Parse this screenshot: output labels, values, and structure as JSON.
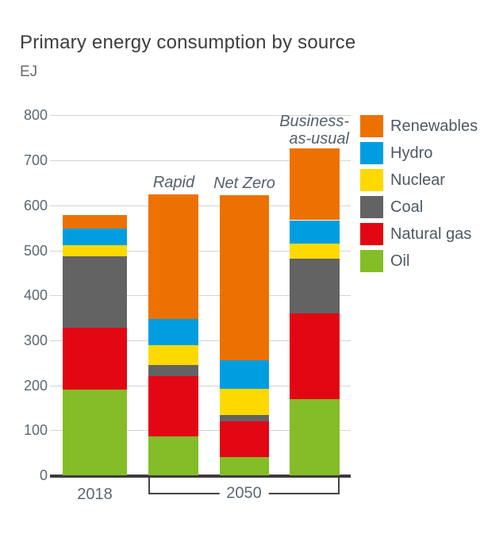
{
  "chart_data": {
    "type": "bar",
    "stacked": true,
    "title": "Primary energy consumption by source",
    "unit": "EJ",
    "ylim": [
      0,
      800
    ],
    "ytick_step": 100,
    "grid": "horizontal",
    "legend_position": "top-right",
    "stack_order_bottom_to_top": [
      "Oil",
      "Natural gas",
      "Coal",
      "Nuclear",
      "Hydro",
      "Renewables"
    ],
    "legend_order_top_to_bottom": [
      "Renewables",
      "Hydro",
      "Nuclear",
      "Coal",
      "Natural gas",
      "Oil"
    ],
    "colors": {
      "Renewables": "#ed7100",
      "Hydro": "#009ee0",
      "Nuclear": "#fed900",
      "Coal": "#636363",
      "Natural gas": "#e30613",
      "Oil": "#84bd27"
    },
    "categories": [
      "2018",
      "Rapid",
      "Net Zero",
      "Business-as-usual"
    ],
    "bars": [
      {
        "id": "2018",
        "scenario_label": null,
        "values": {
          "Oil": 190,
          "Natural gas": 138,
          "Coal": 158,
          "Nuclear": 25,
          "Hydro": 37,
          "Renewables": 30
        },
        "total": 578
      },
      {
        "id": "rapid",
        "scenario_label": "Rapid",
        "values": {
          "Oil": 87,
          "Natural gas": 133,
          "Coal": 25,
          "Nuclear": 45,
          "Hydro": 58,
          "Renewables": 276
        },
        "total": 624
      },
      {
        "id": "net-zero",
        "scenario_label": "Net Zero",
        "values": {
          "Oil": 40,
          "Natural gas": 80,
          "Coal": 14,
          "Nuclear": 58,
          "Hydro": 63,
          "Renewables": 368
        },
        "total": 623
      },
      {
        "id": "business-as-usual",
        "scenario_label": "Business-\nas-usual",
        "values": {
          "Oil": 170,
          "Natural gas": 189,
          "Coal": 123,
          "Nuclear": 33,
          "Hydro": 52,
          "Renewables": 160
        },
        "total": 727
      }
    ],
    "x_axis": {
      "year_2018": "2018",
      "year_2050": "2050"
    }
  }
}
